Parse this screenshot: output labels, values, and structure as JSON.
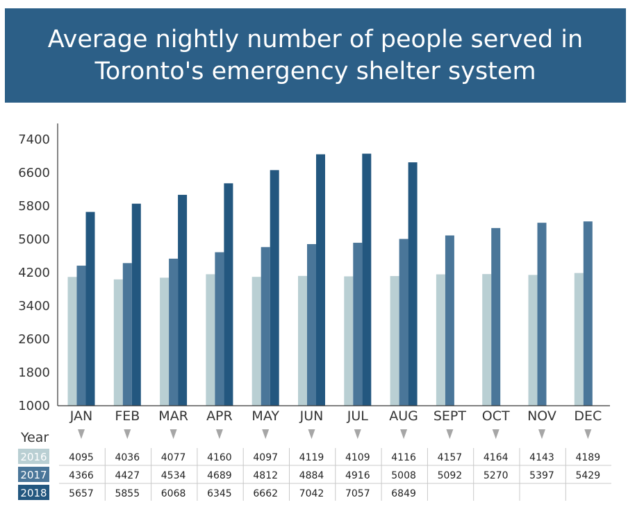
{
  "title": "Average nightly number of people served in Toronto's emergency shelter system",
  "colors": {
    "banner": "#2c5f87",
    "series_2016": "#b9cfd3",
    "series_2017": "#4a7699",
    "series_2018": "#23577f",
    "arrow": "#a6a6a6"
  },
  "chart_data": {
    "type": "bar",
    "title": "Average nightly number of people served in Toronto's emergency shelter system",
    "xlabel": "",
    "ylabel": "",
    "ylim": [
      1000,
      7400
    ],
    "yticks": [
      1000,
      1800,
      2600,
      3400,
      4200,
      5000,
      5800,
      6600,
      7400
    ],
    "grid": false,
    "categories": [
      "JAN",
      "FEB",
      "MAR",
      "APR",
      "MAY",
      "JUN",
      "JUL",
      "AUG",
      "SEPT",
      "OCT",
      "NOV",
      "DEC"
    ],
    "series": [
      {
        "name": "2016",
        "values": [
          4095,
          4036,
          4077,
          4160,
          4097,
          4119,
          4109,
          4116,
          4157,
          4164,
          4143,
          4189
        ]
      },
      {
        "name": "2017",
        "values": [
          4366,
          4427,
          4534,
          4689,
          4812,
          4884,
          4916,
          5008,
          5092,
          5270,
          5397,
          5429
        ]
      },
      {
        "name": "2018",
        "values": [
          5657,
          5855,
          6068,
          6345,
          6662,
          7042,
          7057,
          6849,
          null,
          null,
          null,
          null
        ]
      }
    ]
  },
  "table": {
    "year_header": "Year",
    "row_labels": [
      "2016",
      "2017",
      "2018"
    ]
  }
}
